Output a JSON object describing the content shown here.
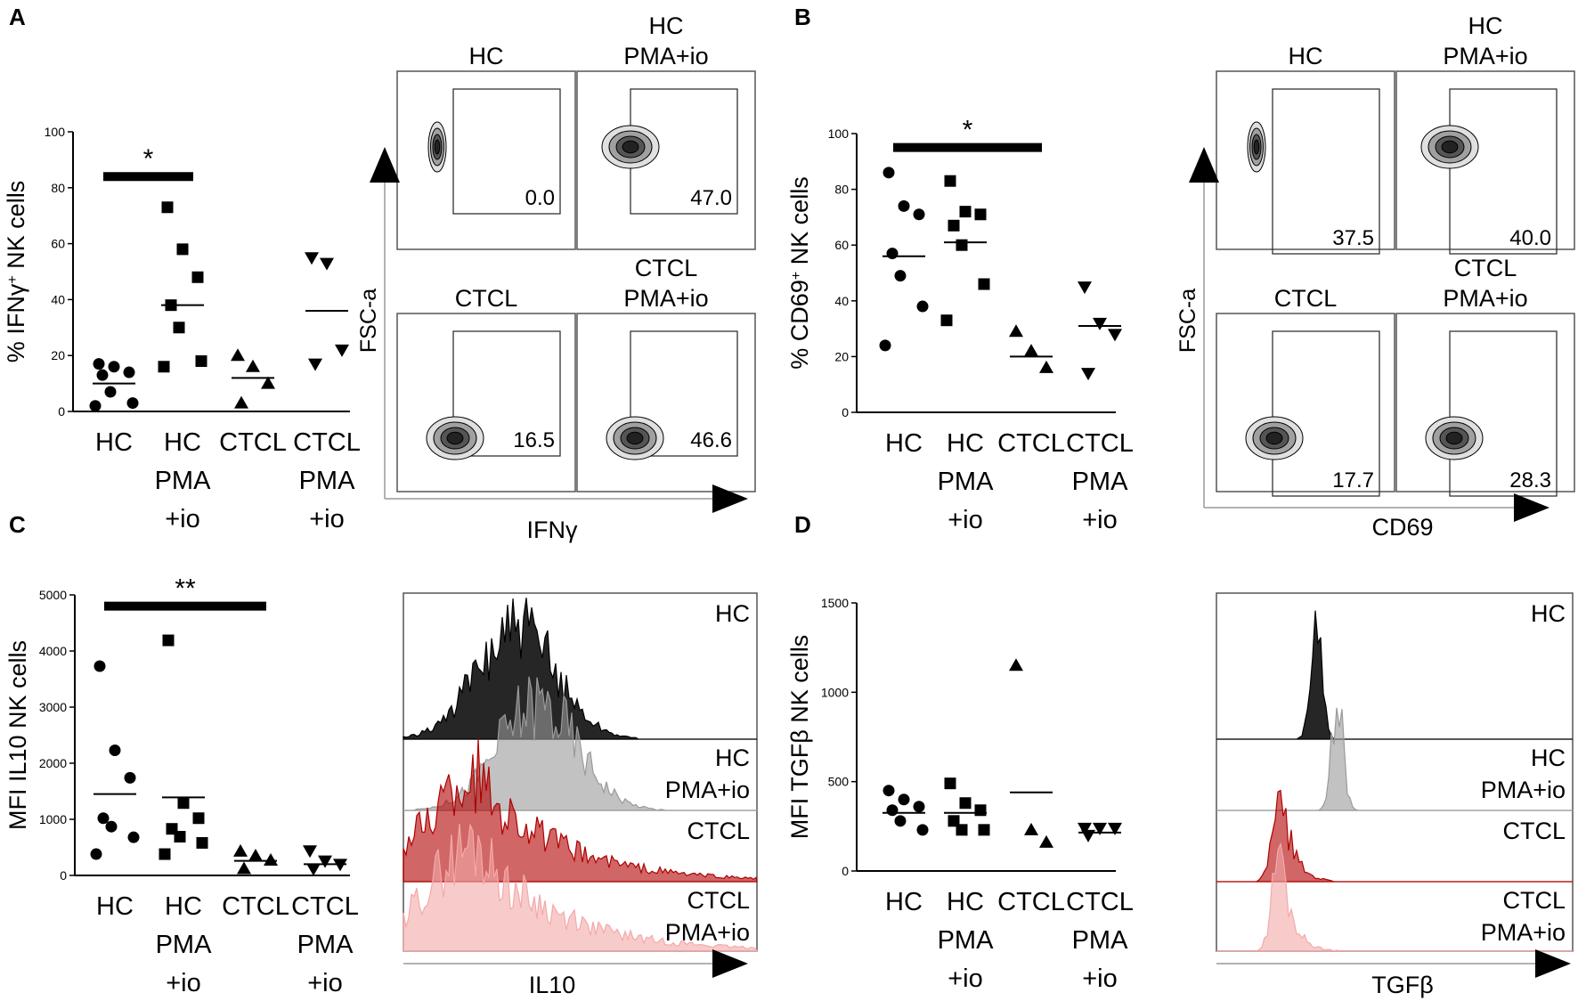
{
  "panel_labels": {
    "a": "A",
    "b": "B",
    "c": "C",
    "d": "D"
  },
  "colors": {
    "black": "#000000",
    "hc_pma": "#9a9a9a",
    "ctcl": "#b00000",
    "ctcl_pma": "#f4a8a8",
    "grid": "#bbbbbb",
    "ref": "#f08080"
  },
  "dot_categories": [
    "HC",
    "HC PMA +io",
    "CTCL",
    "CTCL PMA +io"
  ],
  "cat_labels": [
    {
      "line1": "HC",
      "line2": "",
      "line3": ""
    },
    {
      "line1": "HC",
      "line2": "PMA",
      "line3": "+io"
    },
    {
      "line1": "CTCL",
      "line2": "",
      "line3": ""
    },
    {
      "line1": "CTCL",
      "line2": "PMA",
      "line3": "+io"
    }
  ],
  "chart_data": [
    {
      "id": "A-scatter",
      "type": "scatter",
      "ylabel_pre": "% IFNγ",
      "ylabel_sup": "+",
      "ylabel_post": " NK cells",
      "ylim": [
        0,
        100
      ],
      "yticks": [
        "0",
        "20",
        "40",
        "60",
        "80",
        "100"
      ],
      "series": [
        {
          "name": "HC",
          "marker": "circle",
          "values": [
            17,
            16,
            14,
            13,
            7,
            3,
            2
          ],
          "mean": 10
        },
        {
          "name": "HC PMA +io",
          "marker": "square",
          "values": [
            73,
            58,
            48,
            38,
            30,
            18,
            16
          ],
          "mean": 38
        },
        {
          "name": "CTCL",
          "marker": "triangle-up",
          "values": [
            20,
            16,
            10,
            3
          ],
          "mean": 12
        },
        {
          "name": "CTCL PMA +io",
          "marker": "triangle-down",
          "values": [
            55,
            53,
            22,
            17
          ],
          "mean": 36
        }
      ],
      "sig_text": "*",
      "sig_from": 0,
      "sig_to": 1,
      "sig_y": 84
    },
    {
      "id": "B-scatter",
      "type": "scatter",
      "ylabel_pre": "% CD69",
      "ylabel_sup": "+",
      "ylabel_post": " NK cells",
      "ylim": [
        0,
        100
      ],
      "yticks": [
        "0",
        "20",
        "40",
        "60",
        "80",
        "100"
      ],
      "series": [
        {
          "name": "HC",
          "marker": "circle",
          "values": [
            86,
            74,
            71,
            57,
            49,
            38,
            24
          ],
          "mean": 56
        },
        {
          "name": "HC PMA +io",
          "marker": "square",
          "values": [
            83,
            72,
            71,
            67,
            60,
            46,
            33
          ],
          "mean": 61
        },
        {
          "name": "CTCL",
          "marker": "triangle-up",
          "values": [
            29,
            22,
            16
          ],
          "mean": 20
        },
        {
          "name": "CTCL PMA +io",
          "marker": "triangle-down",
          "values": [
            45,
            32,
            28,
            14
          ],
          "mean": 31
        }
      ],
      "sig_text": "*",
      "sig_from": 0,
      "sig_to": 2,
      "sig_y": 95
    },
    {
      "id": "C-scatter",
      "type": "scatter",
      "ylabel_pre": "MFI IL10 NK cells",
      "ylabel_sup": "",
      "ylabel_post": "",
      "ylim": [
        0,
        5000
      ],
      "yticks": [
        "0",
        "1000",
        "2000",
        "3000",
        "4000",
        "5000"
      ],
      "series": [
        {
          "name": "HC",
          "marker": "circle",
          "values": [
            3730,
            2230,
            1740,
            1020,
            870,
            680,
            380
          ],
          "mean": 1450
        },
        {
          "name": "HC PMA +io",
          "marker": "square",
          "values": [
            4190,
            1290,
            1020,
            830,
            690,
            580,
            380
          ],
          "mean": 1390
        },
        {
          "name": "CTCL",
          "marker": "triangle-up",
          "values": [
            430,
            350,
            270,
            120
          ],
          "mean": 260
        },
        {
          "name": "CTCL PMA +io",
          "marker": "triangle-down",
          "values": [
            440,
            260,
            200,
            120
          ],
          "mean": 200
        }
      ],
      "sig_text": "**",
      "sig_from": 0,
      "sig_to": 2,
      "sig_y": 4800
    },
    {
      "id": "D-scatter",
      "type": "scatter",
      "ylabel_pre": "MFI TGFβ NK cells",
      "ylabel_sup": "",
      "ylabel_post": "",
      "ylim": [
        0,
        1500
      ],
      "yticks": [
        "0",
        "500",
        "1000",
        "1500"
      ],
      "series": [
        {
          "name": "HC",
          "marker": "circle",
          "values": [
            450,
            400,
            360,
            340,
            280,
            230
          ],
          "mean": 325
        },
        {
          "name": "HC PMA +io",
          "marker": "square",
          "values": [
            490,
            380,
            340,
            280,
            230,
            230
          ],
          "mean": 325
        },
        {
          "name": "CTCL",
          "marker": "triangle-up",
          "values": [
            1150,
            230,
            160
          ],
          "mean": 440
        },
        {
          "name": "CTCL PMA +io",
          "marker": "triangle-down",
          "values": [
            240,
            240,
            240,
            200
          ],
          "mean": 215
        }
      ],
      "sig_text": "",
      "sig_from": 0,
      "sig_to": 0,
      "sig_y": 0
    },
    {
      "id": "A-flow",
      "type": "flow-contour",
      "x_label": "IFNγ",
      "y_label": "FSC-a",
      "plots": [
        {
          "title": "HC",
          "title_sub": "",
          "value": "0.0"
        },
        {
          "title": "HC",
          "title_sub": "PMA+io",
          "value": "47.0"
        },
        {
          "title": "CTCL",
          "title_sub": "",
          "value": "16.5"
        },
        {
          "title": "CTCL",
          "title_sub": "PMA+io",
          "value": "46.6"
        }
      ]
    },
    {
      "id": "B-flow",
      "type": "flow-contour",
      "x_label": "CD69",
      "y_label": "FSC-a",
      "plots": [
        {
          "title": "HC",
          "title_sub": "",
          "value": "37.5"
        },
        {
          "title": "HC",
          "title_sub": "PMA+io",
          "value": "40.0"
        },
        {
          "title": "CTCL",
          "title_sub": "",
          "value": "17.7"
        },
        {
          "title": "CTCL",
          "title_sub": "PMA+io",
          "value": "28.3"
        }
      ]
    },
    {
      "id": "C-histogram",
      "type": "histogram-overlay",
      "x_label": "IL10",
      "tracks": [
        {
          "label": "HC",
          "label_sub": ""
        },
        {
          "label": "HC",
          "label_sub": "PMA+io"
        },
        {
          "label": "CTCL",
          "label_sub": ""
        },
        {
          "label": "CTCL",
          "label_sub": "PMA+io"
        }
      ]
    },
    {
      "id": "D-histogram",
      "type": "histogram-overlay",
      "x_label": "TGFβ",
      "tracks": [
        {
          "label": "HC",
          "label_sub": ""
        },
        {
          "label": "HC",
          "label_sub": "PMA+io"
        },
        {
          "label": "CTCL",
          "label_sub": ""
        },
        {
          "label": "CTCL",
          "label_sub": "PMA+io"
        }
      ]
    }
  ]
}
